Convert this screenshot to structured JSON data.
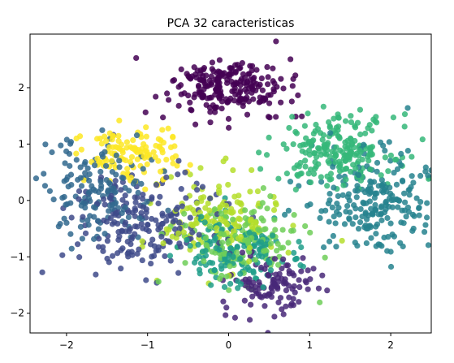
{
  "chart_data": {
    "type": "scatter",
    "title": "PCA 32 caracteristicas",
    "xlabel": "",
    "ylabel": "",
    "xlim": [
      -2.45,
      2.5
    ],
    "ylim": [
      -2.35,
      2.95
    ],
    "x_ticks": [
      -2,
      -1,
      0,
      1,
      2
    ],
    "y_ticks": [
      -2,
      -1,
      0,
      1,
      2
    ],
    "x_tick_labels": [
      "−2",
      "−1",
      "0",
      "1",
      "2"
    ],
    "y_tick_labels": [
      "−2",
      "−1",
      "0",
      "1",
      "2"
    ],
    "grid": false,
    "legend": "none",
    "point_alpha": 0.85,
    "colormap": "viridis",
    "clusters": [
      {
        "color": "#440154",
        "center": [
          0.0,
          2.0
        ],
        "spread": [
          0.35,
          0.25
        ],
        "count": 230
      },
      {
        "color": "#482878",
        "center": [
          0.55,
          -1.5
        ],
        "spread": [
          0.3,
          0.25
        ],
        "count": 110
      },
      {
        "color": "#3e4a89",
        "center": [
          -1.0,
          -0.4
        ],
        "spread": [
          0.5,
          0.45
        ],
        "count": 200
      },
      {
        "color": "#31688e",
        "center": [
          -1.6,
          0.2
        ],
        "spread": [
          0.35,
          0.45
        ],
        "count": 150
      },
      {
        "color": "#26828e",
        "center": [
          1.8,
          0.0
        ],
        "spread": [
          0.4,
          0.45
        ],
        "count": 230
      },
      {
        "color": "#1f9e89",
        "center": [
          0.1,
          -0.95
        ],
        "spread": [
          0.35,
          0.3
        ],
        "count": 150
      },
      {
        "color": "#35b779",
        "center": [
          1.35,
          0.9
        ],
        "spread": [
          0.35,
          0.3
        ],
        "count": 210
      },
      {
        "color": "#6ece58",
        "center": [
          0.1,
          -0.75
        ],
        "spread": [
          0.4,
          0.35
        ],
        "count": 150
      },
      {
        "color": "#b5de2b",
        "center": [
          -0.1,
          -0.35
        ],
        "spread": [
          0.35,
          0.4
        ],
        "count": 150
      },
      {
        "color": "#fde725",
        "center": [
          -1.2,
          0.8
        ],
        "spread": [
          0.3,
          0.25
        ],
        "count": 120
      }
    ]
  }
}
